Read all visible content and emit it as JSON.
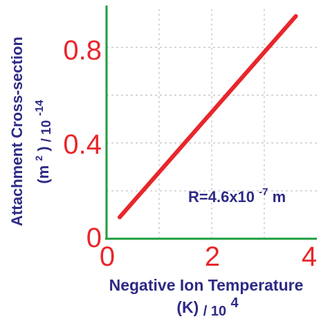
{
  "chart_data": {
    "type": "line",
    "title": "",
    "xlabel_parts": {
      "main": "Negative Ion Temperature",
      "unit": "(K)",
      "scale_base": "/ 10",
      "scale_exp": "4"
    },
    "ylabel_parts": {
      "main": "Attachment Cross-section",
      "unit_base": "(m",
      "unit_exp": "2",
      "unit_end": ")",
      "scale_base": "/ 10",
      "scale_exp": "-14"
    },
    "xlim": [
      0,
      4
    ],
    "ylim": [
      0,
      0.96
    ],
    "x_ticks": [
      0,
      2,
      4
    ],
    "x_tick_labels": [
      "0",
      "2",
      "4"
    ],
    "y_ticks": [
      0,
      0.4,
      0.8
    ],
    "y_tick_labels": [
      "0",
      "0.4",
      "0.8"
    ],
    "grid": true,
    "series": [
      {
        "x": [
          0.25,
          3.6
        ],
        "y": [
          0.09,
          0.93
        ],
        "color": "#e8262b"
      }
    ],
    "markers": {
      "x": [
        0.5,
        0.75,
        1.0,
        1.25,
        1.5,
        1.75,
        2.0,
        2.25,
        2.5,
        2.75,
        3.0,
        3.25,
        3.5
      ],
      "y": [
        0.153,
        0.215,
        0.278,
        0.341,
        0.404,
        0.466,
        0.529,
        0.592,
        0.655,
        0.718,
        0.781,
        0.843,
        0.906
      ]
    },
    "annotation": {
      "base": "R=4.6x10",
      "exp": "-7",
      "end": "m"
    },
    "colors": {
      "axis": "#1e9c3e",
      "tick": "#e8262b",
      "label": "#2e2a86",
      "grid": "#b5b5b5"
    }
  }
}
